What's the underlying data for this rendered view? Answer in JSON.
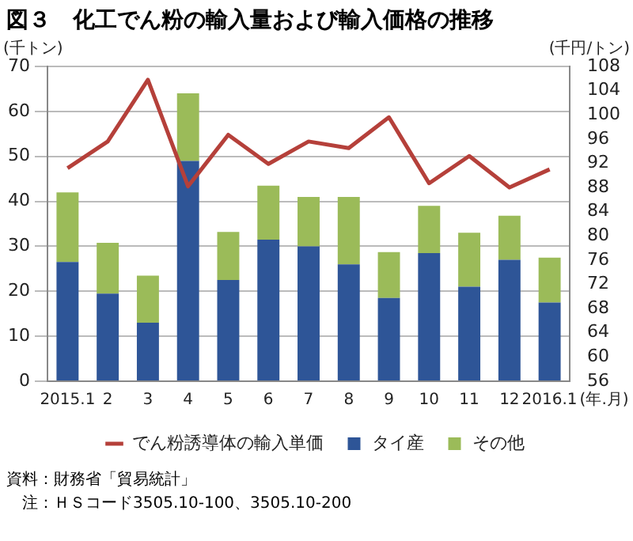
{
  "chart_data": {
    "type": "bar",
    "title": "図３　化工でん粉の輸入量および輸入価格の推移",
    "ylabel": "(千トン)",
    "y2label": "(千円/トン)",
    "xlabel": "(年.月)",
    "categories": [
      "2015.1",
      "2",
      "3",
      "4",
      "5",
      "6",
      "7",
      "8",
      "9",
      "10",
      "11",
      "12",
      "2016.1"
    ],
    "stacked": true,
    "series": [
      {
        "name": "タイ産",
        "color": "#2e5597",
        "values": [
          26.5,
          19.5,
          13,
          49,
          22.5,
          31.5,
          30,
          26,
          18.5,
          28.5,
          21,
          27,
          17.5
        ]
      },
      {
        "name": "その他",
        "color": "#9bbb59",
        "values": [
          15.5,
          11.3,
          10.5,
          15,
          10.7,
          12,
          11,
          15,
          10.2,
          10.5,
          12,
          9.8,
          10
        ]
      },
      {
        "name": "でん粉誘導体の輸入単価",
        "type": "line",
        "axis": "y2",
        "color": "#b5403a",
        "values": [
          91.2,
          95.6,
          105.8,
          88.2,
          96.7,
          91.9,
          95.6,
          94.5,
          99.6,
          88.7,
          93.2,
          88.0,
          91.0
        ]
      }
    ],
    "ylim": [
      0,
      70
    ],
    "yticks": [
      0,
      10,
      20,
      30,
      40,
      50,
      60,
      70
    ],
    "y2lim": [
      56,
      108
    ],
    "y2ticks": [
      56,
      60,
      64,
      68,
      72,
      76,
      80,
      84,
      88,
      92,
      96,
      100,
      104,
      108
    ],
    "grid": "y",
    "legend": "bottom",
    "annotations": [
      "資料：財務省「貿易統計」",
      "注：ＨＳコード3505.10-100、3505.10-200"
    ]
  }
}
